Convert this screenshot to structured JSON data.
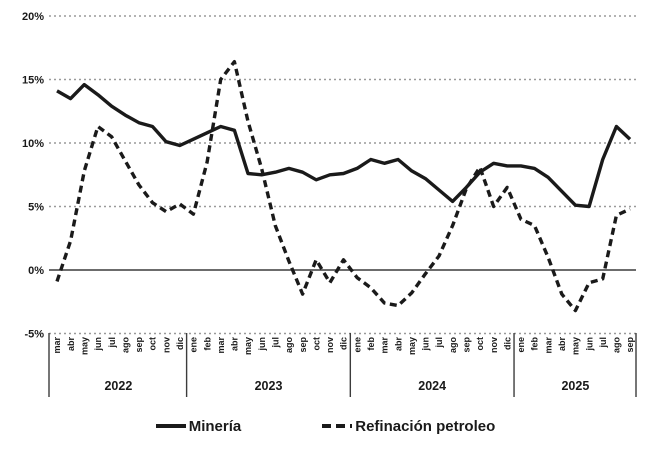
{
  "chart_data": {
    "type": "line",
    "title": "",
    "grid": "horizontal-dotted",
    "legend_position": "bottom",
    "ylim": [
      -5,
      20
    ],
    "y_axis": {
      "ticks": [
        {
          "label": "20%",
          "value": 20
        },
        {
          "label": "15%",
          "value": 15
        },
        {
          "label": "10%",
          "value": 10
        },
        {
          "label": "5%",
          "value": 5
        },
        {
          "label": "0%",
          "value": 0
        },
        {
          "label": "-5%",
          "value": -5
        }
      ]
    },
    "year_groups": [
      {
        "year": "2022",
        "months": [
          "mar",
          "abr",
          "may",
          "jun",
          "jul",
          "ago",
          "sep",
          "oct",
          "nov",
          "dic"
        ]
      },
      {
        "year": "2023",
        "months": [
          "ene",
          "feb",
          "mar",
          "abr",
          "may",
          "jun",
          "jul",
          "ago",
          "sep",
          "oct",
          "nov",
          "dic"
        ]
      },
      {
        "year": "2024",
        "months": [
          "ene",
          "feb",
          "mar",
          "abr",
          "may",
          "jun",
          "jul",
          "ago",
          "sep",
          "oct",
          "nov",
          "dic"
        ]
      },
      {
        "year": "2025",
        "months": [
          "ene",
          "feb",
          "mar",
          "abr",
          "may",
          "jun",
          "jul",
          "ago",
          "sep"
        ]
      }
    ],
    "series": [
      {
        "name": "Minería",
        "id": "mineria",
        "style": "solid",
        "values": [
          14.1,
          13.5,
          14.6,
          13.8,
          12.9,
          12.2,
          11.6,
          11.3,
          10.1,
          9.8,
          10.3,
          10.8,
          11.3,
          11.0,
          7.6,
          7.5,
          7.7,
          8.0,
          7.7,
          7.1,
          7.5,
          7.6,
          8.0,
          8.7,
          8.4,
          8.7,
          7.8,
          7.2,
          6.3,
          5.4,
          6.5,
          7.7,
          8.4,
          8.2,
          8.2,
          8.0,
          7.3,
          6.2,
          5.1,
          5.0,
          8.7,
          11.3,
          10.3
        ]
      },
      {
        "name": "Refinación petroleo",
        "id": "refinacion-petroleo",
        "style": "dashed",
        "values": [
          -0.9,
          2.3,
          7.8,
          11.3,
          10.5,
          8.6,
          6.7,
          5.3,
          4.6,
          5.2,
          4.4,
          8.5,
          15.0,
          16.4,
          11.7,
          8.0,
          3.5,
          0.7,
          -1.9,
          0.8,
          -1.0,
          0.8,
          -0.6,
          -1.4,
          -2.6,
          -2.8,
          -1.8,
          -0.3,
          1.1,
          3.5,
          6.4,
          8.1,
          5.0,
          6.5,
          4.0,
          3.5,
          1.0,
          -1.9,
          -3.2,
          -1.0,
          -0.7,
          4.3,
          4.8
        ]
      }
    ]
  },
  "legend": {
    "mineria": "Minería",
    "refinacion": "Refinación petroleo"
  },
  "colors": {
    "line": "#1a1a1a",
    "grid": "#9a9a9a",
    "zero_axis": "#3c3c3c",
    "separator": "#3c3c3c"
  }
}
